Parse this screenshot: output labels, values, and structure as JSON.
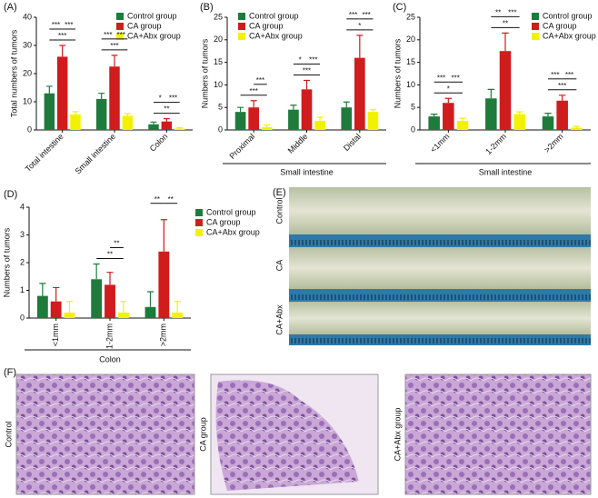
{
  "chart_data": [
    {
      "type": "bar",
      "panel": "(A)",
      "ylabel": "Total numbers of tumors",
      "categories": [
        "Total intestine",
        "Small intestine",
        "Colon"
      ],
      "series": [
        {
          "name": "Control group",
          "color": "#1e7b3c",
          "values": [
            13,
            11,
            2
          ],
          "errors": [
            2.5,
            2,
            0.8
          ]
        },
        {
          "name": "CA group",
          "color": "#d01c1c",
          "values": [
            26,
            22.5,
            3
          ],
          "errors": [
            4,
            4,
            1
          ]
        },
        {
          "name": "CA+Abx group",
          "color": "#f2f200",
          "values": [
            5.5,
            5,
            0.5
          ],
          "errors": [
            1,
            0.8,
            0.3
          ]
        }
      ],
      "ylim": [
        0,
        40
      ],
      "yticks": [
        0,
        10,
        20,
        30,
        40
      ],
      "annotations": [
        {
          "label": "***",
          "category": 0,
          "from": 0,
          "to": 1
        },
        {
          "label": "***",
          "category": 0,
          "from": 1,
          "to": 2
        },
        {
          "label": "***",
          "category": 0,
          "from": 0,
          "to": 2
        },
        {
          "label": "***",
          "category": 1,
          "from": 0,
          "to": 1
        },
        {
          "label": "***",
          "category": 1,
          "from": 1,
          "to": 2
        },
        {
          "label": "***",
          "category": 1,
          "from": 0,
          "to": 2
        },
        {
          "label": "*",
          "category": 2,
          "from": 0,
          "to": 1
        },
        {
          "label": "***",
          "category": 2,
          "from": 1,
          "to": 2
        },
        {
          "label": "**",
          "category": 2,
          "from": 0,
          "to": 2
        }
      ]
    },
    {
      "type": "bar",
      "panel": "(B)",
      "ylabel": "Numbers of tumors",
      "xlabel": "Small intestine",
      "categories": [
        "Proximal",
        "Middle",
        "Distal"
      ],
      "series": [
        {
          "name": "Control group",
          "color": "#1e7b3c",
          "values": [
            4,
            4.5,
            5
          ],
          "errors": [
            1,
            1,
            1.2
          ]
        },
        {
          "name": "CA group",
          "color": "#d01c1c",
          "values": [
            5,
            9,
            16
          ],
          "errors": [
            1.5,
            2,
            5
          ]
        },
        {
          "name": "CA+Abx group",
          "color": "#f2f200",
          "values": [
            0.6,
            2,
            4
          ],
          "errors": [
            0.5,
            0.8,
            0.5
          ]
        }
      ],
      "ylim": [
        0,
        25
      ],
      "yticks": [
        0,
        5,
        10,
        15,
        20,
        25
      ],
      "annotations": [
        {
          "label": "***",
          "category": 0,
          "from": 1,
          "to": 2
        },
        {
          "label": "***",
          "category": 0,
          "from": 0,
          "to": 2
        },
        {
          "label": "*",
          "category": 1,
          "from": 0,
          "to": 1
        },
        {
          "label": "***",
          "category": 1,
          "from": 1,
          "to": 2
        },
        {
          "label": "***",
          "category": 1,
          "from": 0,
          "to": 2
        },
        {
          "label": "***",
          "category": 2,
          "from": 0,
          "to": 1
        },
        {
          "label": "***",
          "category": 2,
          "from": 1,
          "to": 2
        },
        {
          "label": "*",
          "category": 2,
          "from": 0,
          "to": 2
        }
      ]
    },
    {
      "type": "bar",
      "panel": "(C)",
      "ylabel": "Numbers of tumors",
      "xlabel": "Small intestine",
      "categories": [
        "<1mm",
        "1-2mm",
        ">2mm"
      ],
      "series": [
        {
          "name": "Control group",
          "color": "#1e7b3c",
          "values": [
            3,
            7,
            3
          ],
          "errors": [
            0.5,
            2,
            0.7
          ]
        },
        {
          "name": "CA group",
          "color": "#d01c1c",
          "values": [
            6,
            17.5,
            6.5
          ],
          "errors": [
            1,
            4,
            1.2
          ]
        },
        {
          "name": "CA+Abx group",
          "color": "#f2f200",
          "values": [
            2,
            3.5,
            0.5
          ],
          "errors": [
            0.6,
            0.5,
            0.3
          ]
        }
      ],
      "ylim": [
        0,
        25
      ],
      "yticks": [
        0,
        5,
        10,
        15,
        20,
        25
      ],
      "annotations": [
        {
          "label": "***",
          "category": 0,
          "from": 0,
          "to": 1
        },
        {
          "label": "***",
          "category": 0,
          "from": 1,
          "to": 2
        },
        {
          "label": "*",
          "category": 0,
          "from": 0,
          "to": 2
        },
        {
          "label": "**",
          "category": 1,
          "from": 0,
          "to": 1
        },
        {
          "label": "***",
          "category": 1,
          "from": 1,
          "to": 2
        },
        {
          "label": "**",
          "category": 1,
          "from": 0,
          "to": 2
        },
        {
          "label": "***",
          "category": 2,
          "from": 0,
          "to": 1
        },
        {
          "label": "***",
          "category": 2,
          "from": 1,
          "to": 2
        },
        {
          "label": "***",
          "category": 2,
          "from": 0,
          "to": 2
        }
      ]
    },
    {
      "type": "bar",
      "panel": "(D)",
      "ylabel": "Numbers of tumors",
      "xlabel": "Colon",
      "categories": [
        "<1mm",
        "1-2mm",
        ">2mm"
      ],
      "series": [
        {
          "name": "Control group",
          "color": "#1e7b3c",
          "values": [
            0.8,
            1.4,
            0.4
          ],
          "errors": [
            0.45,
            0.55,
            0.55
          ]
        },
        {
          "name": "CA group",
          "color": "#d01c1c",
          "values": [
            0.6,
            1.2,
            2.4
          ],
          "errors": [
            0.5,
            0.45,
            1.15
          ]
        },
        {
          "name": "CA+Abx group",
          "color": "#f2f200",
          "values": [
            0.2,
            0.2,
            0.2
          ],
          "errors": [
            0.4,
            0.4,
            0.4
          ]
        }
      ],
      "ylim": [
        0,
        4
      ],
      "yticks": [
        0,
        1,
        2,
        3,
        4
      ],
      "annotations": [
        {
          "label": "**",
          "category": 1,
          "from": 1,
          "to": 2
        },
        {
          "label": "**",
          "category": 1,
          "from": 0,
          "to": 2
        },
        {
          "label": "**",
          "category": 2,
          "from": 0,
          "to": 1
        },
        {
          "label": "**",
          "category": 2,
          "from": 1,
          "to": 2
        }
      ]
    }
  ],
  "panel_e": {
    "label": "(E)",
    "rows": [
      "Control",
      "CA",
      "CA+Abx"
    ]
  },
  "panel_f": {
    "label": "(F)",
    "images": [
      "Control",
      "CA group",
      "CA+Abx group"
    ]
  }
}
